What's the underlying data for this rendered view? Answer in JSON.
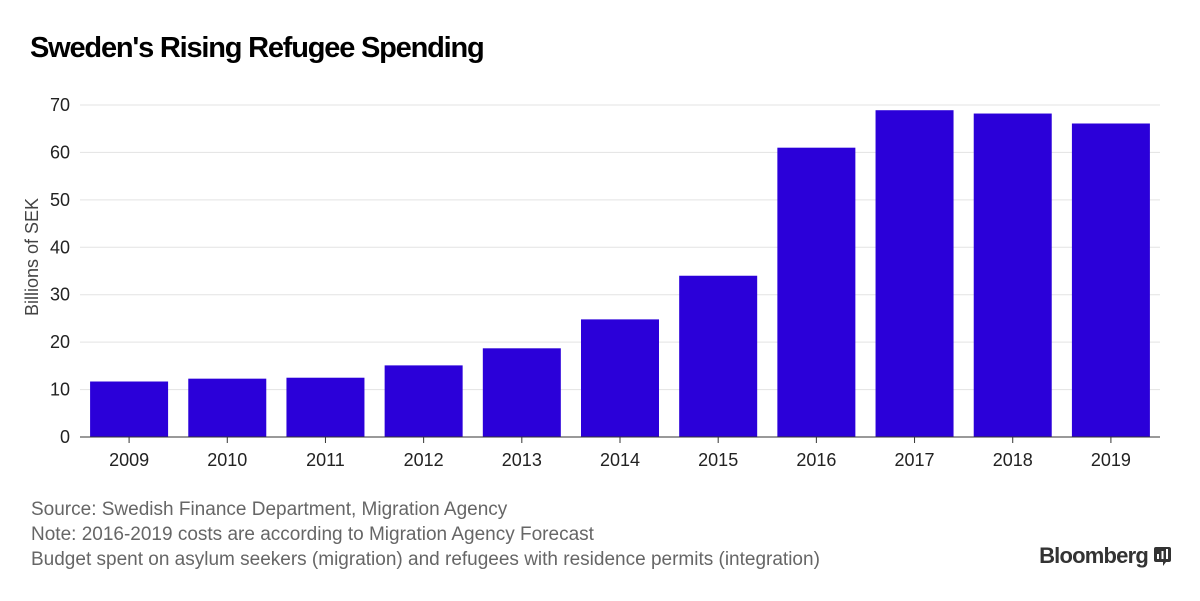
{
  "title": "Sweden's Rising Refugee Spending",
  "chart_data": {
    "type": "bar",
    "categories": [
      "2009",
      "2010",
      "2011",
      "2012",
      "2013",
      "2014",
      "2015",
      "2016",
      "2017",
      "2018",
      "2019"
    ],
    "values": [
      11.7,
      12.3,
      12.5,
      15.1,
      18.7,
      24.8,
      34.0,
      61.0,
      68.9,
      68.2,
      66.1
    ],
    "ylabel": "Billions of SEK",
    "xlabel": "",
    "ylim": [
      0,
      70
    ],
    "yticks": [
      0,
      10,
      20,
      30,
      40,
      50,
      60,
      70
    ],
    "grid": true,
    "bar_color": "#2b00d9"
  },
  "footnotes": {
    "source": "Source: Swedish Finance Department, Migration Agency",
    "note": "Note: 2016-2019 costs are according to Migration Agency Forecast",
    "description": "Budget spent on asylum seekers (migration) and refugees with residence permits (integration)"
  },
  "brand": {
    "name": "Bloomberg",
    "icon": "bloomberg-terminal-icon"
  }
}
